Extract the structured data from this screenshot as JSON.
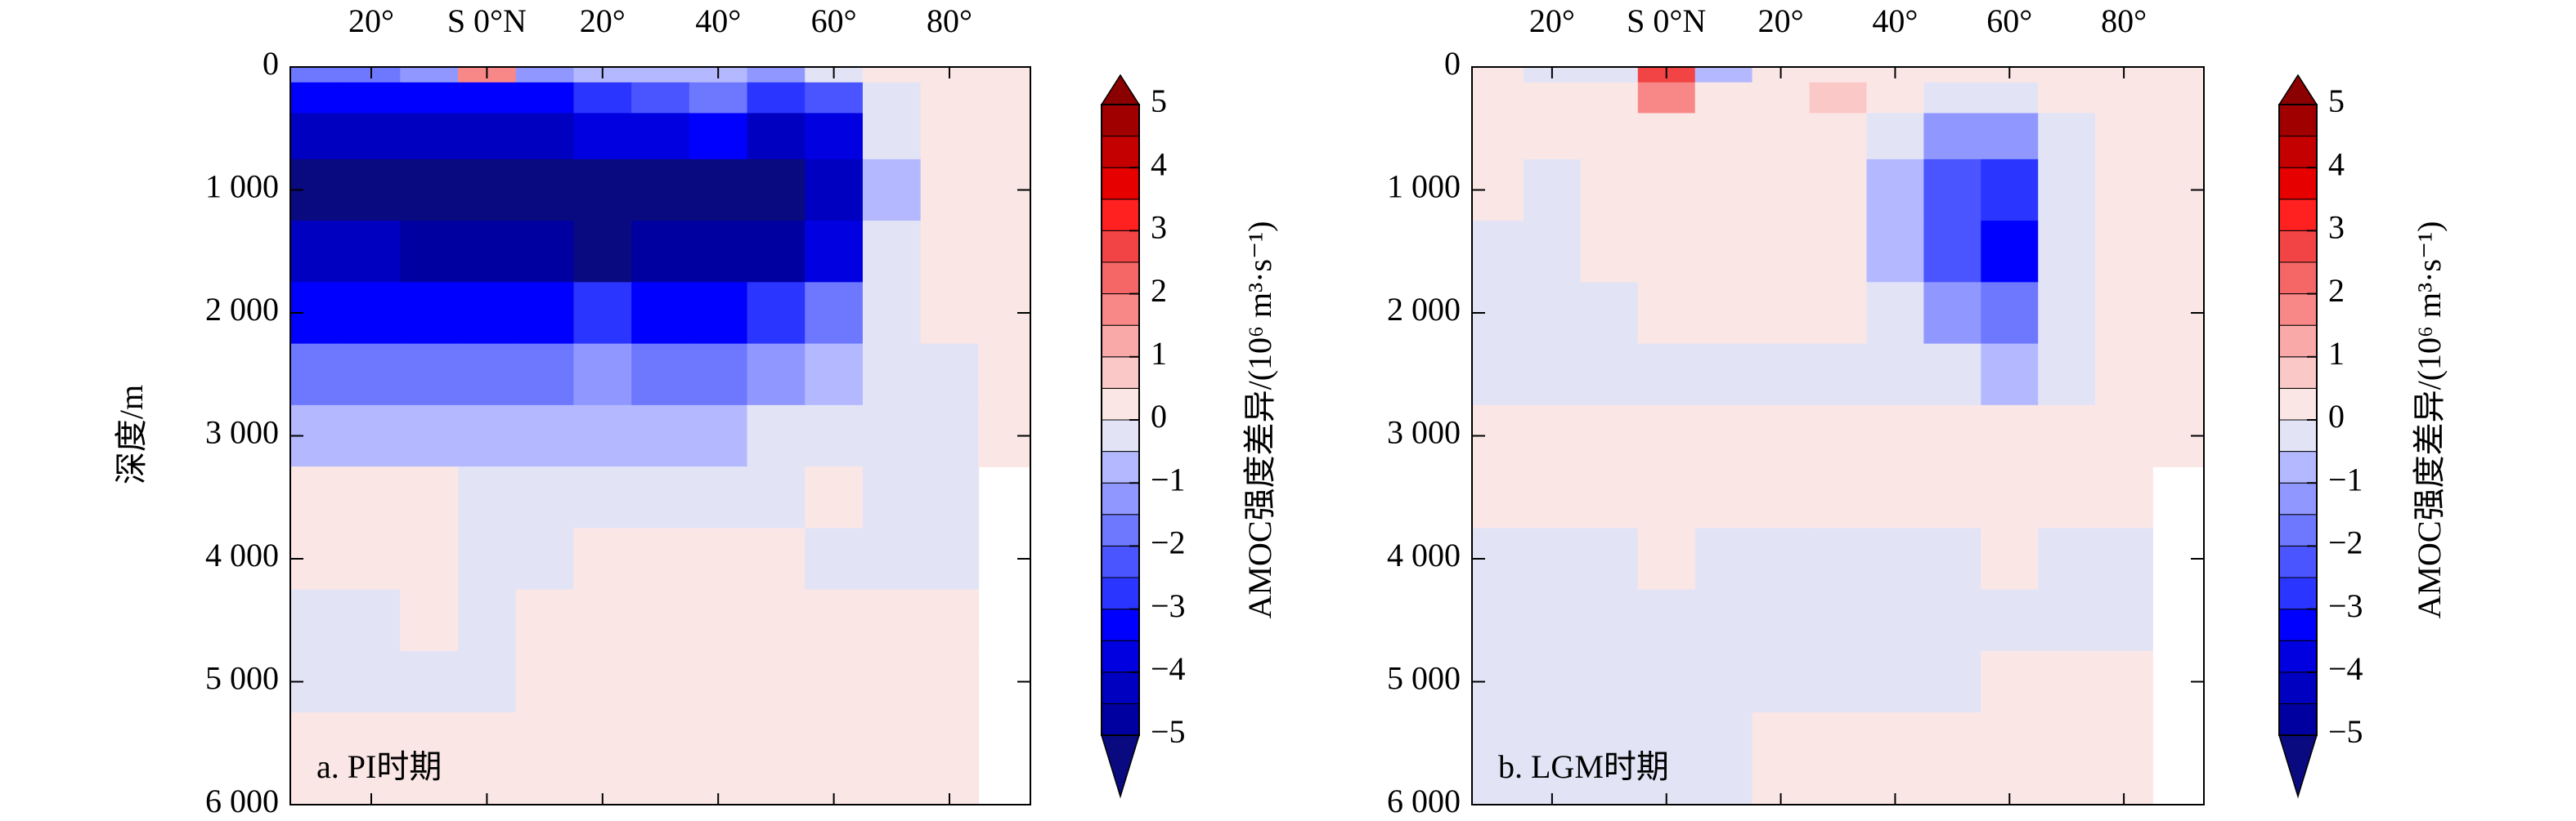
{
  "chart_data": [
    {
      "type": "contour",
      "annotation": "a. PI时期",
      "ylabel": "深度/m",
      "x": [
        -30,
        -20,
        -10,
        0,
        10,
        20,
        30,
        40,
        50,
        60,
        70,
        80,
        90
      ],
      "y": [
        0,
        250,
        500,
        1000,
        1500,
        2000,
        2500,
        3000,
        3500,
        4000,
        4500,
        5000,
        5500
      ],
      "z": [
        [
          -2,
          -2,
          -1.5,
          1.5,
          -1.5,
          -1,
          -1,
          -1,
          -1.5,
          -0.5,
          0.2,
          0.2,
          0.2
        ],
        [
          -3.5,
          -3.5,
          -3.5,
          -3.5,
          -3.5,
          -3,
          -2.5,
          -2,
          -3,
          -2.5,
          -0.3,
          0.2,
          0.2
        ],
        [
          -4.5,
          -4.5,
          -4.5,
          -4.5,
          -4.5,
          -4,
          -4,
          -3.5,
          -4.5,
          -4,
          -0.5,
          0.2,
          0.2
        ],
        [
          -5.5,
          -5.5,
          -5.5,
          -5.5,
          -5.5,
          -5.5,
          -5.5,
          -5.5,
          -5.5,
          -4.5,
          -0.7,
          0.2,
          0.2
        ],
        [
          -4.5,
          -4.5,
          -5,
          -5,
          -5,
          -5.5,
          -5,
          -5,
          -5,
          -4,
          -0.5,
          0.1,
          0.1
        ],
        [
          -3.5,
          -3.5,
          -3.5,
          -3.5,
          -3.5,
          -3,
          -3.5,
          -3.5,
          -3,
          -2,
          -0.3,
          0.1,
          0.1
        ],
        [
          -2,
          -2,
          -2,
          -2,
          -2,
          -1.5,
          -2,
          -2,
          -1.5,
          -0.7,
          -0.2,
          -0.2,
          0.1
        ],
        [
          -0.7,
          -0.7,
          -0.7,
          -0.7,
          -0.7,
          -0.7,
          -0.7,
          -0.6,
          -0.4,
          -0.2,
          -0.2,
          -0.2,
          0.1
        ],
        [
          0.2,
          0.2,
          0.1,
          -0.2,
          -0.2,
          -0.2,
          -0.2,
          -0.2,
          -0.2,
          0.1,
          -0.2,
          -0.2,
          null
        ],
        [
          0.2,
          0.2,
          0.2,
          -0.2,
          -0.2,
          0.2,
          0.2,
          0.2,
          0.2,
          -0.2,
          -0.2,
          -0.2,
          null
        ],
        [
          -0.2,
          -0.2,
          0.2,
          -0.2,
          0.2,
          0.2,
          0.2,
          0.2,
          0.2,
          0.2,
          0.2,
          0.2,
          null
        ],
        [
          -0.2,
          -0.2,
          -0.2,
          -0.2,
          0.2,
          0.2,
          0.2,
          0.2,
          0.2,
          0.2,
          0.2,
          0.2,
          null
        ],
        [
          0.2,
          0.2,
          0.2,
          0.2,
          0.2,
          0.2,
          0.2,
          0.2,
          0.2,
          0.2,
          0.2,
          0.2,
          null
        ]
      ],
      "xlim": [
        -34,
        94
      ],
      "ylim": [
        0,
        6000
      ],
      "y_inverted": true,
      "xticks": [
        {
          "value": -20,
          "label": "20°"
        },
        {
          "value": 0,
          "label": "S 0°N"
        },
        {
          "value": 20,
          "label": "20°"
        },
        {
          "value": 40,
          "label": "40°"
        },
        {
          "value": 60,
          "label": "60°"
        },
        {
          "value": 80,
          "label": "80°"
        }
      ],
      "yticks": [
        0,
        {
          "value": 1000,
          "label": "1 000"
        },
        {
          "value": 2000,
          "label": "2 000"
        },
        {
          "value": 3000,
          "label": "3 000"
        },
        {
          "value": 4000,
          "label": "4 000"
        },
        {
          "value": 5000,
          "label": "5 000"
        },
        {
          "value": 6000,
          "label": "6 000"
        }
      ],
      "colorbar": {
        "label": "AMOC强度差异/(10⁶ m³·s⁻¹)",
        "extend": "both",
        "levels": [
          -5,
          -4.5,
          -4,
          -3.5,
          -3,
          -2.5,
          -2,
          -1.5,
          -1,
          -0.5,
          0,
          0.5,
          1,
          1.5,
          2,
          2.5,
          3,
          3.5,
          4,
          4.5,
          5
        ],
        "colors": [
          "#0a0a80",
          "#0000a0",
          "#0000c0",
          "#0000e0",
          "#0000ff",
          "#2a35ff",
          "#4a55ff",
          "#6e78ff",
          "#9098ff",
          "#b4b9ff",
          "#e2e4f6",
          "#fbe6e6",
          "#fbc8c8",
          "#faa9a9",
          "#f88888",
          "#f56666",
          "#f24444",
          "#ff2020",
          "#e60000",
          "#c40000",
          "#a00000",
          "#8b0000"
        ],
        "ticks": [
          {
            "value": -5,
            "label": "−5"
          },
          {
            "value": -4,
            "label": "−4"
          },
          {
            "value": -3,
            "label": "−3"
          },
          {
            "value": -2,
            "label": "−2"
          },
          {
            "value": -1,
            "label": "−1"
          },
          0,
          1,
          2,
          3,
          4,
          5
        ]
      }
    },
    {
      "type": "contour",
      "annotation": "b. LGM时期",
      "x": [
        -30,
        -20,
        -10,
        0,
        10,
        20,
        30,
        40,
        50,
        60,
        70,
        80,
        90
      ],
      "y": [
        0,
        250,
        500,
        1000,
        1500,
        2000,
        2500,
        3000,
        3500,
        4000,
        4500,
        5000,
        5500
      ],
      "z": [
        [
          0.2,
          -0.2,
          -0.2,
          2.5,
          -1,
          0.2,
          0.2,
          0.2,
          0.2,
          0.2,
          0.2,
          0.2,
          0.2
        ],
        [
          0.2,
          0.2,
          0.2,
          1.5,
          0.2,
          0.2,
          0.7,
          0.2,
          -0.3,
          -0.3,
          0.2,
          0.2,
          0.2
        ],
        [
          0.2,
          0.2,
          0.2,
          0.2,
          0.2,
          0.2,
          0.2,
          -0.5,
          -1.5,
          -1.5,
          -0.3,
          0.2,
          0.2
        ],
        [
          0.2,
          -0.2,
          0.2,
          0.2,
          0.2,
          0.2,
          0.2,
          -0.7,
          -2.5,
          -3,
          -0.5,
          0.2,
          0.2
        ],
        [
          -0.2,
          -0.2,
          0.2,
          0.2,
          0.2,
          0.2,
          0.2,
          -0.7,
          -2.5,
          -3.5,
          -0.5,
          0.2,
          0.2
        ],
        [
          -0.2,
          -0.2,
          -0.2,
          0.2,
          0.2,
          0.2,
          0.2,
          -0.5,
          -1.5,
          -2,
          -0.3,
          0.2,
          0.2
        ],
        [
          -0.2,
          -0.2,
          -0.2,
          -0.2,
          -0.2,
          -0.2,
          -0.2,
          -0.2,
          -0.5,
          -0.7,
          -0.2,
          0.2,
          0.2
        ],
        [
          0.2,
          0.2,
          0.2,
          0.2,
          0.2,
          0.2,
          0.2,
          0.2,
          0.2,
          0.2,
          0.2,
          0.2,
          0.2
        ],
        [
          0.2,
          0.2,
          0.2,
          0.2,
          0.2,
          0.2,
          0.2,
          0.2,
          0.2,
          0.2,
          0.2,
          0.2,
          null
        ],
        [
          -0.2,
          -0.2,
          -0.2,
          0.2,
          -0.2,
          -0.2,
          -0.2,
          -0.2,
          -0.2,
          0.2,
          -0.2,
          -0.2,
          null
        ],
        [
          -0.2,
          -0.2,
          -0.2,
          -0.2,
          -0.2,
          -0.5,
          -0.2,
          -0.2,
          -0.2,
          -0.2,
          -0.2,
          -0.2,
          null
        ],
        [
          -0.2,
          -0.2,
          -0.2,
          -0.2,
          -0.2,
          -0.2,
          -0.2,
          -0.2,
          -0.2,
          0.2,
          0.2,
          0.2,
          null
        ],
        [
          -0.2,
          -0.2,
          -0.2,
          -0.2,
          -0.2,
          0.2,
          0.2,
          0.2,
          0.2,
          0.2,
          0.2,
          0.2,
          null
        ]
      ],
      "xlim": [
        -34,
        94
      ],
      "ylim": [
        0,
        6000
      ],
      "y_inverted": true,
      "xticks": [
        {
          "value": -20,
          "label": "20°"
        },
        {
          "value": 0,
          "label": "S 0°N"
        },
        {
          "value": 20,
          "label": "20°"
        },
        {
          "value": 40,
          "label": "40°"
        },
        {
          "value": 60,
          "label": "60°"
        },
        {
          "value": 80,
          "label": "80°"
        }
      ],
      "yticks": [
        0,
        {
          "value": 1000,
          "label": "1 000"
        },
        {
          "value": 2000,
          "label": "2 000"
        },
        {
          "value": 3000,
          "label": "3 000"
        },
        {
          "value": 4000,
          "label": "4 000"
        },
        {
          "value": 5000,
          "label": "5 000"
        },
        {
          "value": 6000,
          "label": "6 000"
        }
      ],
      "colorbar": {
        "label": "AMOC强度差异/(10⁶ m³·s⁻¹)",
        "extend": "both",
        "levels": [
          -5,
          -4.5,
          -4,
          -3.5,
          -3,
          -2.5,
          -2,
          -1.5,
          -1,
          -0.5,
          0,
          0.5,
          1,
          1.5,
          2,
          2.5,
          3,
          3.5,
          4,
          4.5,
          5
        ],
        "colors": [
          "#0a0a80",
          "#0000a0",
          "#0000c0",
          "#0000e0",
          "#0000ff",
          "#2a35ff",
          "#4a55ff",
          "#6e78ff",
          "#9098ff",
          "#b4b9ff",
          "#e2e4f6",
          "#fbe6e6",
          "#fbc8c8",
          "#faa9a9",
          "#f88888",
          "#f56666",
          "#f24444",
          "#ff2020",
          "#e60000",
          "#c40000",
          "#a00000",
          "#8b0000"
        ],
        "ticks": [
          {
            "value": -5,
            "label": "−5"
          },
          {
            "value": -4,
            "label": "−4"
          },
          {
            "value": -3,
            "label": "−3"
          },
          {
            "value": -2,
            "label": "−2"
          },
          {
            "value": -1,
            "label": "−1"
          },
          0,
          1,
          2,
          3,
          4,
          5
        ]
      }
    }
  ]
}
